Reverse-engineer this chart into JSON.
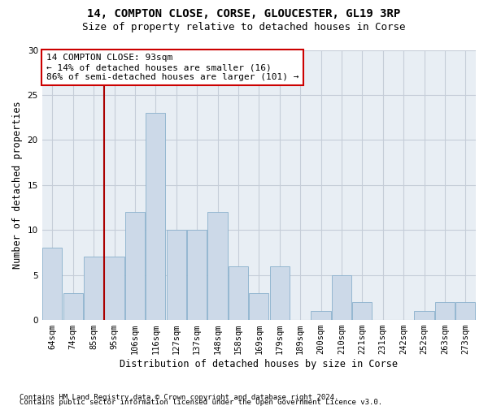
{
  "title1": "14, COMPTON CLOSE, CORSE, GLOUCESTER, GL19 3RP",
  "title2": "Size of property relative to detached houses in Corse",
  "xlabel": "Distribution of detached houses by size in Corse",
  "ylabel": "Number of detached properties",
  "bar_color": "#ccd9e8",
  "bar_edge_color": "#8ab0cc",
  "grid_color": "#c5cdd8",
  "bg_color": "#e8eef4",
  "categories": [
    "64sqm",
    "74sqm",
    "85sqm",
    "95sqm",
    "106sqm",
    "116sqm",
    "127sqm",
    "137sqm",
    "148sqm",
    "158sqm",
    "169sqm",
    "179sqm",
    "189sqm",
    "200sqm",
    "210sqm",
    "221sqm",
    "231sqm",
    "242sqm",
    "252sqm",
    "263sqm",
    "273sqm"
  ],
  "values": [
    8,
    3,
    7,
    7,
    12,
    23,
    10,
    10,
    12,
    6,
    3,
    6,
    0,
    1,
    5,
    2,
    0,
    0,
    1,
    2,
    2
  ],
  "vline_color": "#aa0000",
  "annotation_text": "14 COMPTON CLOSE: 93sqm\n← 14% of detached houses are smaller (16)\n86% of semi-detached houses are larger (101) →",
  "annotation_box_color": "#ffffff",
  "annotation_box_edge": "#cc0000",
  "ylim": [
    0,
    30
  ],
  "yticks": [
    0,
    5,
    10,
    15,
    20,
    25,
    30
  ],
  "footer1": "Contains HM Land Registry data © Crown copyright and database right 2024.",
  "footer2": "Contains public sector information licensed under the Open Government Licence v3.0.",
  "title_fontsize": 10,
  "subtitle_fontsize": 9,
  "annotation_fontsize": 8,
  "axis_label_fontsize": 8.5,
  "tick_fontsize": 7.5,
  "footer_fontsize": 6.5
}
